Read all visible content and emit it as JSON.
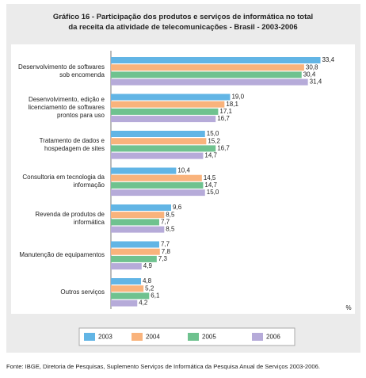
{
  "chart_data": {
    "type": "bar",
    "orientation": "horizontal",
    "title": "Gráfico 16 - Participação dos produtos e serviços de informática no total da receita da atividade de telecomunicações - Brasil - 2003-2006",
    "x_label": "%",
    "source": "Fonte: IBGE, Diretoria de Pesquisas, Suplemento Serviços de Informática da Pesquisa Anual de Serviços 2003-2006.",
    "categories": [
      "Desenvolvimento de softwares sob encomenda",
      "Desenvolvimento, edição e licenciamento de softwares prontos para uso",
      "Tratamento de dados e hospedagem de sites",
      "Consultoria em tecnologia da informação",
      "Revenda de produtos de informática",
      "Manutenção de equipamentos",
      "Outros serviços"
    ],
    "series": [
      {
        "name": "2003",
        "color": "#62b5e5",
        "values": [
          33.4,
          19.0,
          15.0,
          10.4,
          9.6,
          7.7,
          4.8
        ],
        "value_labels": [
          "33,4",
          "19,0",
          "15,0",
          "10,4",
          "9,6",
          "7,7",
          "4,8"
        ]
      },
      {
        "name": "2004",
        "color": "#f9b37c",
        "values": [
          30.8,
          18.1,
          15.2,
          14.5,
          8.5,
          7.8,
          5.2
        ],
        "value_labels": [
          "30,8",
          "18,1",
          "15,2",
          "14,5",
          "8,5",
          "7,8",
          "5,2"
        ]
      },
      {
        "name": "2005",
        "color": "#6fc28f",
        "values": [
          30.4,
          17.1,
          16.7,
          14.7,
          7.7,
          7.3,
          6.1
        ],
        "value_labels": [
          "30,4",
          "17,1",
          "16,7",
          "14,7",
          "7,7",
          "7,3",
          "6,1"
        ]
      },
      {
        "name": "2006",
        "color": "#b6abd9",
        "values": [
          31.4,
          16.7,
          14.7,
          15.0,
          8.5,
          4.9,
          4.2
        ],
        "value_labels": [
          "31,4",
          "16,7",
          "14,7",
          "15,0",
          "8,5",
          "4,9",
          "4,2"
        ]
      }
    ],
    "xlim": [
      0,
      37
    ]
  }
}
